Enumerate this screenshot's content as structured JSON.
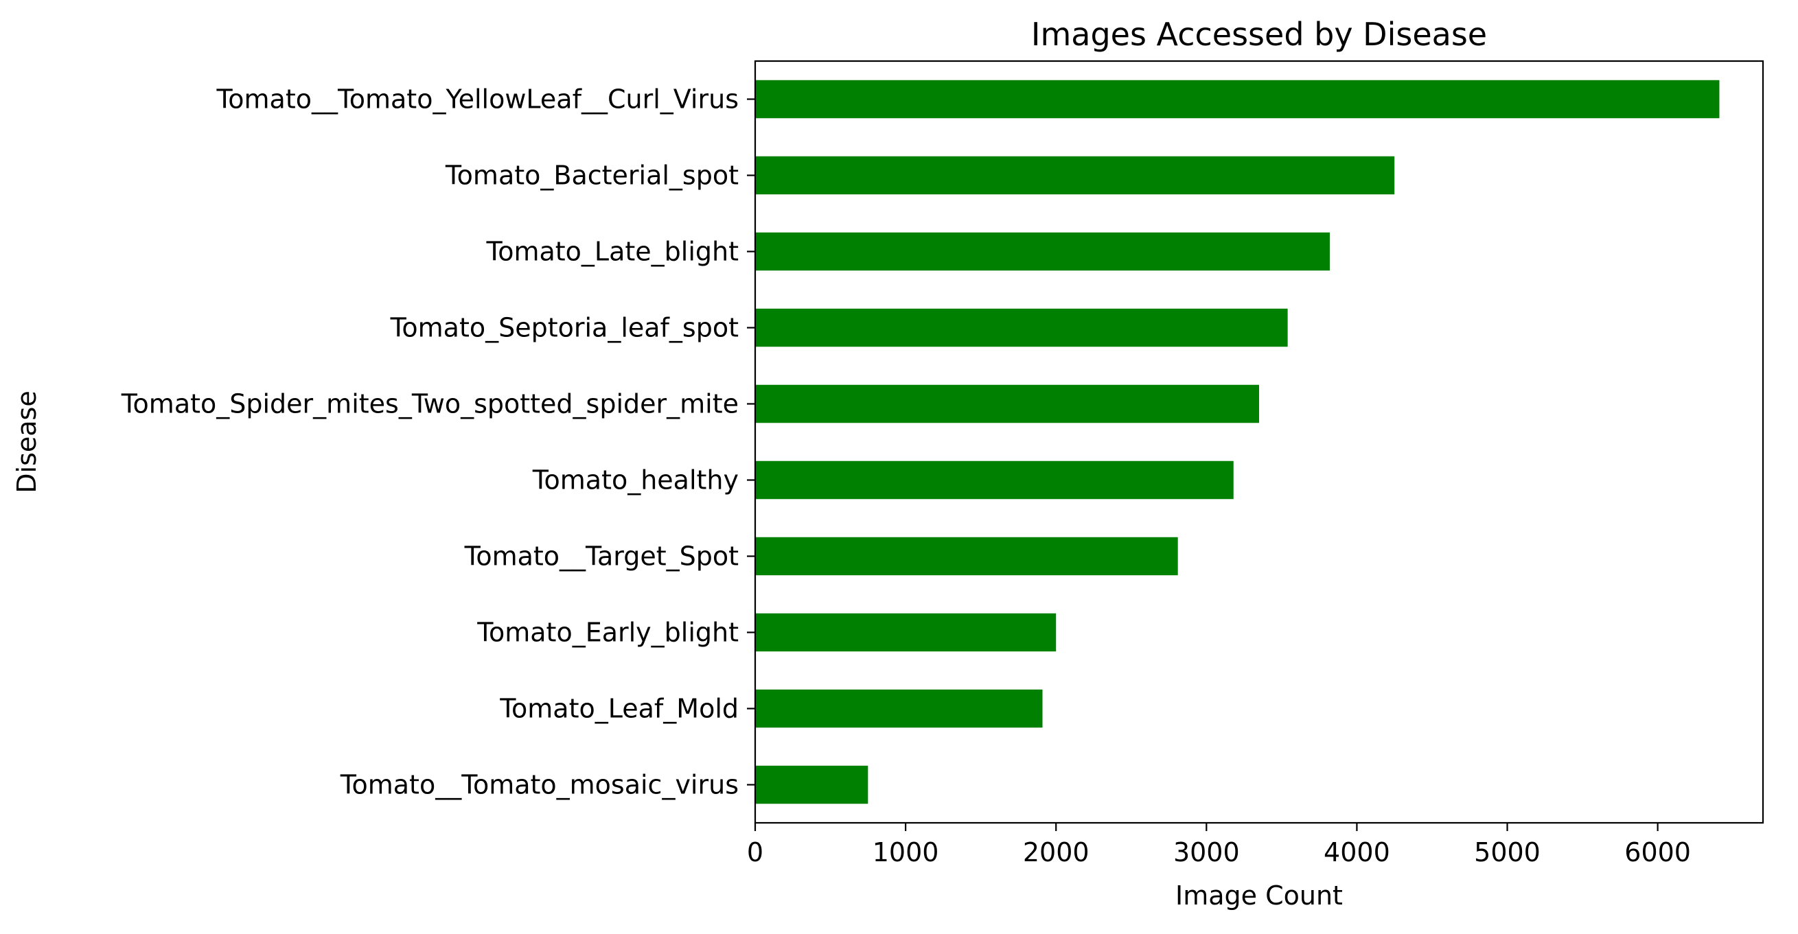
{
  "chart_data": {
    "type": "bar",
    "orientation": "horizontal",
    "title": "Images Accessed by Disease",
    "xlabel": "Image Count",
    "ylabel": "Disease",
    "xlim": [
      0,
      6700
    ],
    "xticks": [
      0,
      1000,
      2000,
      3000,
      4000,
      5000,
      6000
    ],
    "grid": false,
    "legend": "none",
    "bar_color": "#008000",
    "categories": [
      "Tomato__Tomato_YellowLeaf__Curl_Virus",
      "Tomato_Bacterial_spot",
      "Tomato_Late_blight",
      "Tomato_Septoria_leaf_spot",
      "Tomato_Spider_mites_Two_spotted_spider_mite",
      "Tomato_healthy",
      "Tomato__Target_Spot",
      "Tomato_Early_blight",
      "Tomato_Leaf_Mold",
      "Tomato__Tomato_mosaic_virus"
    ],
    "values": [
      6410,
      4250,
      3820,
      3540,
      3350,
      3180,
      2810,
      2000,
      1910,
      750
    ]
  }
}
